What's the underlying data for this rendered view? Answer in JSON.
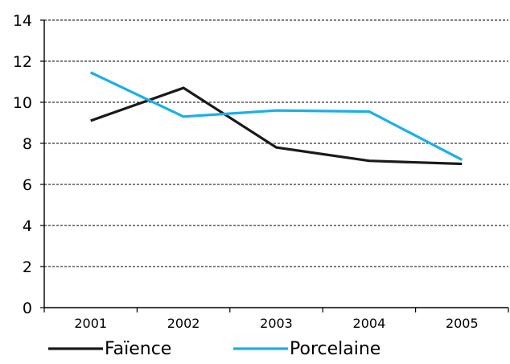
{
  "chart_data": {
    "type": "line",
    "categories": [
      "2001",
      "2002",
      "2003",
      "2004",
      "2005"
    ],
    "series": [
      {
        "name": "Faïence",
        "color": "#1a1a1a",
        "values": [
          9.1,
          10.7,
          7.8,
          7.15,
          7.0
        ]
      },
      {
        "name": "Porcelaine",
        "color": "#1ab0e6",
        "values": [
          11.45,
          9.3,
          9.6,
          9.55,
          7.2
        ]
      }
    ],
    "ylim": [
      0,
      14
    ],
    "yticks": [
      "0",
      "2",
      "4",
      "6",
      "8",
      "10",
      "12",
      "14"
    ],
    "grid": true,
    "legend_position": "bottom"
  }
}
